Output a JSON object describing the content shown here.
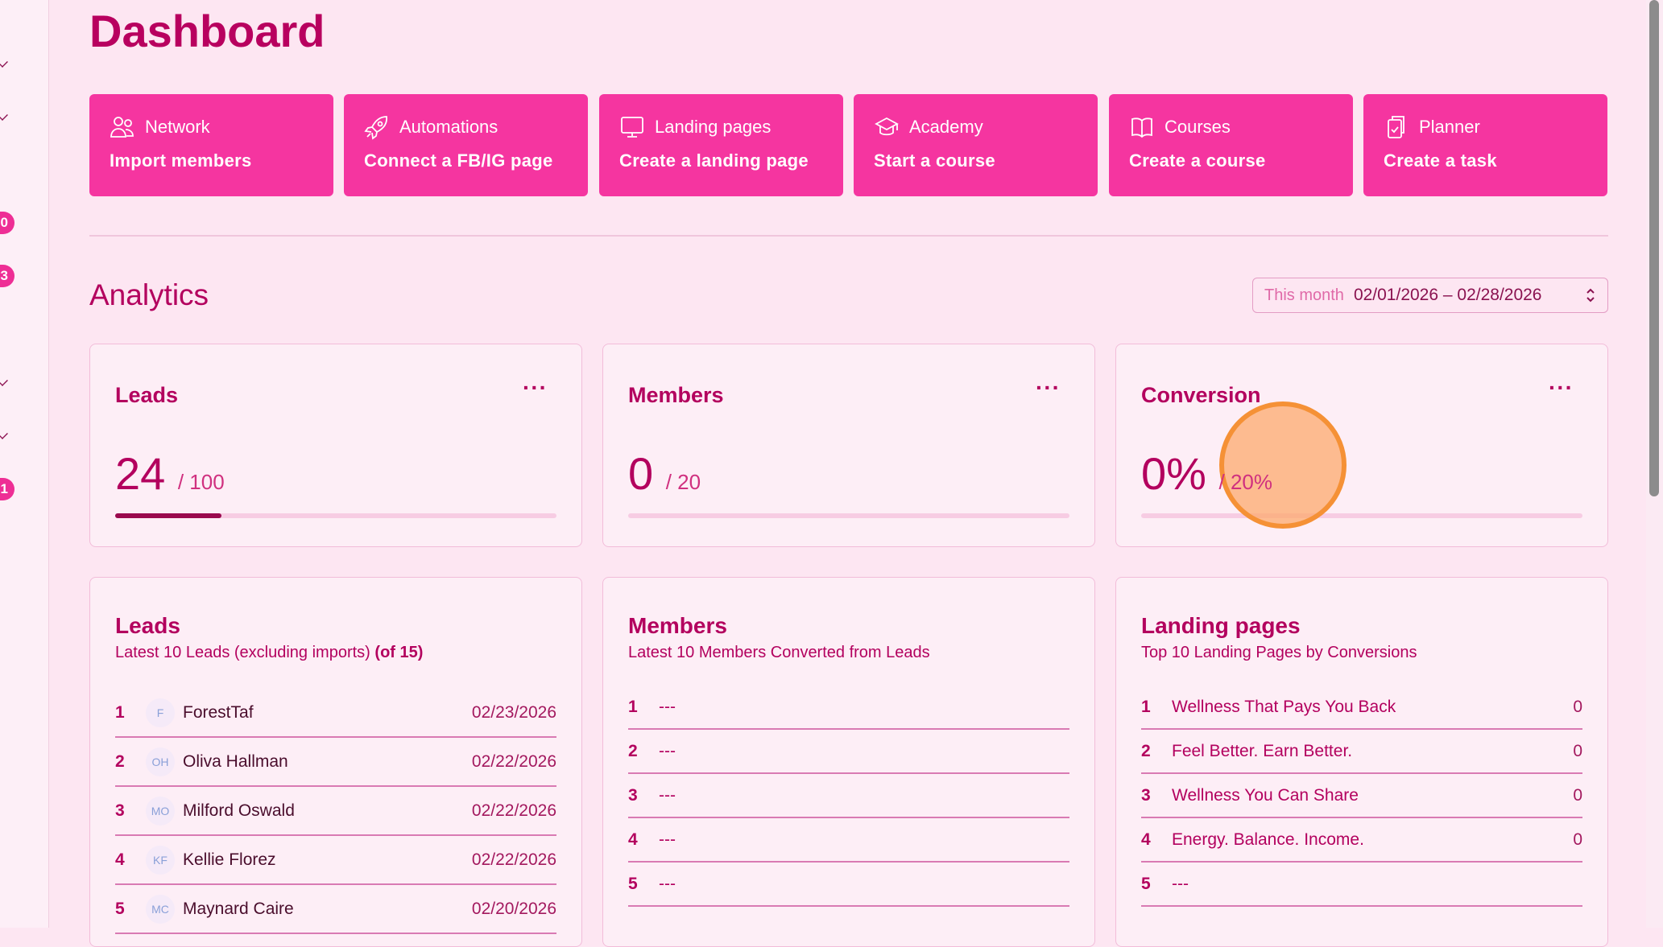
{
  "sidebar": {
    "badges": [
      "0",
      "3",
      "1"
    ]
  },
  "page": {
    "title": "Dashboard"
  },
  "quick_actions": [
    {
      "title": "Network",
      "action": "Import members",
      "icon": "users-icon"
    },
    {
      "title": "Automations",
      "action": "Connect a FB/IG page",
      "icon": "rocket-icon"
    },
    {
      "title": "Landing pages",
      "action": "Create a landing page",
      "icon": "monitor-icon"
    },
    {
      "title": "Academy",
      "action": "Start a course",
      "icon": "graduation-cap-icon"
    },
    {
      "title": "Courses",
      "action": "Create a course",
      "icon": "book-icon"
    },
    {
      "title": "Planner",
      "action": "Create a task",
      "icon": "clipboard-icon"
    }
  ],
  "analytics": {
    "title": "Analytics",
    "range_label": "This month",
    "range_value": "02/01/2026 – 02/28/2026"
  },
  "stats": [
    {
      "title": "Leads",
      "value": "24",
      "target": "/ 100",
      "progress": 0.24
    },
    {
      "title": "Members",
      "value": "0",
      "target": "/ 20",
      "progress": 0
    },
    {
      "title": "Conversion",
      "value": "0%",
      "target": "/ 20%",
      "progress": 0
    }
  ],
  "leads": {
    "title": "Leads",
    "subtitle": "Latest 10 Leads (excluding imports)",
    "subtitle_count": "(of 15)",
    "rows": [
      {
        "n": "1",
        "initials": "F",
        "name": "ForestTaf",
        "date": "02/23/2026"
      },
      {
        "n": "2",
        "initials": "OH",
        "name": "Oliva Hallman",
        "date": "02/22/2026"
      },
      {
        "n": "3",
        "initials": "MO",
        "name": "Milford Oswald",
        "date": "02/22/2026"
      },
      {
        "n": "4",
        "initials": "KF",
        "name": "Kellie Florez",
        "date": "02/22/2026"
      },
      {
        "n": "5",
        "initials": "MC",
        "name": "Maynard Caire",
        "date": "02/20/2026"
      }
    ]
  },
  "members": {
    "title": "Members",
    "subtitle": "Latest 10 Members Converted from Leads",
    "rows": [
      {
        "n": "1",
        "name": "---"
      },
      {
        "n": "2",
        "name": "---"
      },
      {
        "n": "3",
        "name": "---"
      },
      {
        "n": "4",
        "name": "---"
      },
      {
        "n": "5",
        "name": "---"
      }
    ]
  },
  "landing": {
    "title": "Landing pages",
    "subtitle": "Top 10 Landing Pages by Conversions",
    "rows": [
      {
        "n": "1",
        "name": "Wellness That Pays You Back",
        "count": "0"
      },
      {
        "n": "2",
        "name": "Feel Better. Earn Better.",
        "count": "0"
      },
      {
        "n": "3",
        "name": "Wellness You Can Share",
        "count": "0"
      },
      {
        "n": "4",
        "name": "Energy. Balance. Income.",
        "count": "0"
      },
      {
        "n": "5",
        "name": "---",
        "count": ""
      }
    ]
  },
  "colors": {
    "accent": "#f535a0",
    "title": "#b8005f",
    "background": "#fde6f2"
  }
}
